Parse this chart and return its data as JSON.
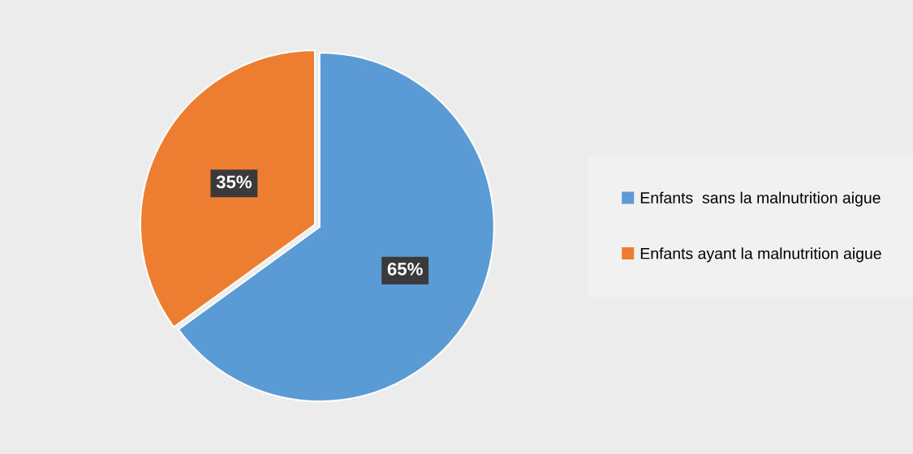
{
  "chart_data": {
    "type": "pie",
    "categories": [
      "Enfants  sans la malnutrition aigue",
      "Enfants ayant la malnutrition aigue"
    ],
    "values": [
      65,
      35
    ],
    "colors": [
      "#5b9bd5",
      "#ed7d31"
    ],
    "value_labels": [
      "65%",
      "35%"
    ],
    "legend": "right"
  }
}
